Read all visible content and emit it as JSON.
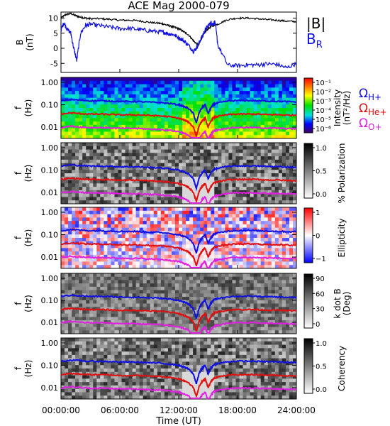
{
  "title": "ACE Mag 2000-079",
  "colors": {
    "black": "#000000",
    "blue": "#1010e0",
    "red": "#e01010",
    "magenta": "#e020e0",
    "bg": "#ffffff"
  },
  "legend_top": {
    "b_total": "|B|",
    "b_r_main": "B",
    "b_r_sub": "R"
  },
  "legend_spectra": [
    {
      "main": "Ω",
      "sub": "H+",
      "color": "#1010e0"
    },
    {
      "main": "Ω",
      "sub": "He+",
      "color": "#e01010"
    },
    {
      "main": "Ω",
      "sub": "O+",
      "color": "#e020e0"
    }
  ],
  "chart_data": {
    "type": "line",
    "title": "ACE Mag 2000-079",
    "xlabel": "Time (UT)",
    "x_tick_labels": [
      "00:00:00",
      "06:00:00",
      "12:00:00",
      "18:00:00",
      "24:00:00"
    ],
    "xlim": [
      0,
      24
    ],
    "panels": [
      {
        "type": "line",
        "ylabel": "B",
        "ylabel_unit": "(nT)",
        "ylim": [
          -8,
          12
        ],
        "y_ticks": [
          10,
          5,
          0,
          -5
        ],
        "y_tick_labels": [
          "10",
          "5",
          "0",
          "-5"
        ],
        "series": [
          {
            "name": "|B|",
            "x": [
              0,
              0.5,
              1,
              1.5,
              2,
              2.5,
              3,
              4,
              5,
              6,
              7,
              8,
              9,
              10,
              10.5,
              11,
              11.5,
              12,
              12.5,
              13,
              13.5,
              14,
              14.3,
              14.6,
              15,
              15.5,
              16,
              17,
              18,
              19,
              20,
              21,
              22,
              23,
              24
            ],
            "values": [
              10,
              11.2,
              11.5,
              10.8,
              10.3,
              10,
              9.8,
              9.8,
              9.6,
              9.3,
              9.3,
              9.1,
              8.6,
              8.3,
              8,
              7.5,
              7,
              6.5,
              5.5,
              4.5,
              2.5,
              1,
              3,
              5,
              6.5,
              7.5,
              8,
              9.5,
              10,
              10,
              9.8,
              9.5,
              9.3,
              9,
              8.8
            ]
          },
          {
            "name": "B",
            "x": [
              0,
              0.3,
              0.6,
              1,
              1.3,
              1.6,
              2,
              2.5,
              3,
              4,
              5,
              6,
              7,
              8,
              9,
              10,
              10.5,
              11,
              11.5,
              12,
              12.5,
              13,
              13.5,
              13.8,
              14.1,
              14.4,
              14.7,
              15,
              15.3,
              15.5,
              15.7,
              16,
              17,
              18,
              19,
              20,
              21,
              22,
              23,
              24
            ],
            "values": [
              6,
              8.5,
              6.5,
              5,
              0,
              -4,
              5,
              7.5,
              8,
              7.5,
              7,
              6.5,
              6.6,
              6.2,
              5.8,
              5.5,
              5.3,
              4.8,
              4.5,
              3.5,
              2.5,
              1,
              -1,
              0,
              2,
              4,
              6,
              7.5,
              8.5,
              8,
              8.8,
              1,
              -5.6,
              -5.8,
              -5.5,
              -5.5,
              -5.2,
              -5.3,
              -6.5,
              -5
            ]
          }
        ]
      },
      {
        "type": "heatmap",
        "ylabel": "f",
        "ylabel_unit": "(Hz)",
        "y_tick_labels": [
          "1.00",
          "0.10",
          "0.01"
        ],
        "colorbar_label": "Intensity",
        "colorbar_unit": "(nT²/Hz)",
        "colorbar_ticks": [
          "10⁻¹",
          "10⁻²",
          "10⁻³",
          "10⁻⁴",
          "10⁻⁵",
          "10⁻⁶"
        ],
        "colorscale": "rainbow"
      },
      {
        "type": "heatmap",
        "ylabel": "f",
        "ylabel_unit": "(Hz)",
        "y_tick_labels": [
          "1.00",
          "0.10",
          "0.01"
        ],
        "colorbar_label": "% Polarization",
        "colorbar_ticks": [
          "1.0",
          "0.5",
          "0.0"
        ],
        "colorscale": "gray"
      },
      {
        "type": "heatmap",
        "ylabel": "f",
        "ylabel_unit": "(Hz)",
        "y_tick_labels": [
          "1.00",
          "0.10",
          "0.01"
        ],
        "colorbar_label": "Ellipticity",
        "colorbar_ticks": [
          "1",
          "0",
          "−1"
        ],
        "colorscale": "bluewhitered"
      },
      {
        "type": "heatmap",
        "ylabel": "f",
        "ylabel_unit": "(Hz)",
        "y_tick_labels": [
          "1.00",
          "0.10",
          "0.01"
        ],
        "colorbar_label": "k dot B",
        "colorbar_unit": "(Deg)",
        "colorbar_ticks": [
          "90",
          "60",
          "30",
          "0"
        ],
        "colorscale": "gray"
      },
      {
        "type": "heatmap",
        "ylabel": "f",
        "ylabel_unit": "(Hz)",
        "y_tick_labels": [
          "1.00",
          "0.10",
          "0.01"
        ],
        "colorbar_label": "Coherency",
        "colorbar_ticks": [
          "1.0",
          "0.5",
          "0.0"
        ],
        "colorscale": "gray"
      }
    ],
    "gyrofrequency_curves": [
      {
        "name": "H+",
        "x": [
          0,
          1,
          2,
          3,
          4,
          5,
          6,
          7,
          8,
          9,
          10,
          11,
          12,
          12.5,
          13,
          13.5,
          13.8,
          14.1,
          14.4,
          14.7,
          15,
          15.3,
          15.6,
          16,
          17,
          18,
          19,
          20,
          21,
          22,
          23,
          24
        ],
        "values": [
          0.15,
          0.17,
          0.16,
          0.15,
          0.15,
          0.147,
          0.14,
          0.14,
          0.138,
          0.13,
          0.126,
          0.115,
          0.1,
          0.084,
          0.069,
          0.04,
          0.015,
          0.046,
          0.076,
          0.1,
          0.04,
          0.076,
          0.107,
          0.12,
          0.145,
          0.153,
          0.153,
          0.15,
          0.145,
          0.142,
          0.137,
          0.134
        ]
      },
      {
        "name": "He+",
        "x": [
          0,
          1,
          2,
          3,
          4,
          5,
          6,
          7,
          8,
          9,
          10,
          11,
          12,
          12.5,
          13,
          13.5,
          13.8,
          14.1,
          14.4,
          14.7,
          15,
          15.3,
          15.6,
          16,
          17,
          18,
          19,
          20,
          21,
          22,
          23,
          24
        ],
        "values": [
          0.038,
          0.043,
          0.04,
          0.038,
          0.038,
          0.037,
          0.035,
          0.035,
          0.035,
          0.033,
          0.032,
          0.029,
          0.025,
          0.021,
          0.017,
          0.01,
          0.004,
          0.012,
          0.019,
          0.025,
          0.01,
          0.019,
          0.027,
          0.03,
          0.036,
          0.038,
          0.038,
          0.038,
          0.036,
          0.036,
          0.034,
          0.034
        ]
      },
      {
        "name": "O+",
        "x": [
          0,
          1,
          2,
          3,
          4,
          5,
          6,
          7,
          8,
          9,
          10,
          11,
          12,
          12.5,
          13,
          13.5,
          13.8,
          14.1,
          14.4,
          14.7,
          15,
          15.3,
          15.6,
          16,
          17,
          18,
          19,
          20,
          21,
          22,
          23,
          24
        ],
        "values": [
          0.0095,
          0.011,
          0.01,
          0.0095,
          0.0095,
          0.0092,
          0.0088,
          0.0088,
          0.0086,
          0.0081,
          0.0079,
          0.0072,
          0.0063,
          0.0053,
          0.0043,
          0.0025,
          0.001,
          0.0029,
          0.0048,
          0.0063,
          0.0025,
          0.0048,
          0.0067,
          0.0075,
          0.0091,
          0.0096,
          0.0096,
          0.0094,
          0.0091,
          0.0089,
          0.0086,
          0.0084
        ]
      }
    ]
  }
}
